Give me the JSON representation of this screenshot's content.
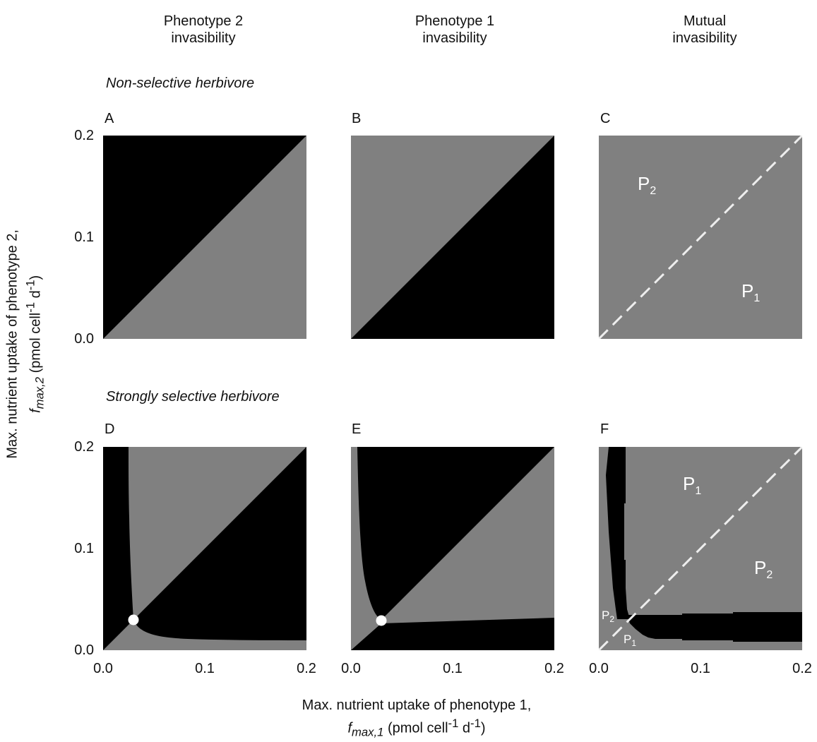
{
  "columns": [
    {
      "line1": "Phenotype 2",
      "line2": "invasibility"
    },
    {
      "line1": "Phenotype 1",
      "line2": "invasibility"
    },
    {
      "line1": "Mutual",
      "line2": "invasibility"
    }
  ],
  "rows": [
    "Non-selective herbivore",
    "Strongly selective herbivore"
  ],
  "panels": [
    "A",
    "B",
    "C",
    "D",
    "E",
    "F"
  ],
  "axes": {
    "x_ticks": [
      "0.0",
      "0.1",
      "0.2"
    ],
    "y_ticks": [
      "0.0",
      "0.1",
      "0.2"
    ],
    "xlabel": {
      "line1": "Max. nutrient uptake of phenotype 1,",
      "symbol": "f",
      "sub": "max,1",
      "unit_pre": "(pmol cell",
      "exp1": "-1",
      "mid": " d",
      "exp2": "-1",
      "unit_post": ")"
    },
    "ylabel": {
      "line1": "Max. nutrient uptake of phenotype 2,",
      "symbol": "f",
      "sub": "max,2",
      "unit_pre": "(pmol cell",
      "exp1": "-1",
      "mid": " d",
      "exp2": "-1",
      "unit_post": ")"
    }
  },
  "region_labels": {
    "C_upper": {
      "p": "P",
      "n": "2"
    },
    "C_lower": {
      "p": "P",
      "n": "1"
    },
    "F_upper": {
      "p": "P",
      "n": "1"
    },
    "F_lower": {
      "p": "P",
      "n": "2"
    },
    "F_small_upper": {
      "p": "P",
      "n": "2"
    },
    "F_small_lower": {
      "p": "P",
      "n": "1"
    }
  },
  "colors": {
    "invadable": "#000000",
    "non_invadable": "#808080",
    "marker": "#ffffff",
    "diagonal_dash": "#eeeeee"
  },
  "chart_data": [
    {
      "panel": "A",
      "type": "heatmap",
      "xlim": [
        0,
        0.2
      ],
      "ylim": [
        0,
        0.2
      ],
      "regions": [
        {
          "where": "y > x",
          "color": "black"
        },
        {
          "where": "y < x",
          "color": "gray"
        }
      ]
    },
    {
      "panel": "B",
      "type": "heatmap",
      "xlim": [
        0,
        0.2
      ],
      "ylim": [
        0,
        0.2
      ],
      "regions": [
        {
          "where": "y > x",
          "color": "gray"
        },
        {
          "where": "y < x",
          "color": "black"
        }
      ]
    },
    {
      "panel": "C",
      "type": "heatmap",
      "xlim": [
        0,
        0.2
      ],
      "ylim": [
        0,
        0.2
      ],
      "regions": [
        {
          "where": "all",
          "color": "gray"
        }
      ],
      "diagonal": "dashed"
    },
    {
      "panel": "D",
      "type": "heatmap",
      "xlim": [
        0,
        0.2
      ],
      "ylim": [
        0,
        0.2
      ],
      "singular_point": [
        0.03,
        0.03
      ],
      "boundary_vertical": [
        [
          0.025,
          0.2
        ],
        [
          0.025,
          0.15
        ],
        [
          0.026,
          0.1
        ],
        [
          0.027,
          0.07
        ],
        [
          0.028,
          0.05
        ],
        [
          0.03,
          0.03
        ]
      ],
      "boundary_horizontal": [
        [
          0.03,
          0.03
        ],
        [
          0.035,
          0.021
        ],
        [
          0.045,
          0.015
        ],
        [
          0.06,
          0.012
        ],
        [
          0.1,
          0.011
        ],
        [
          0.2,
          0.01
        ]
      ]
    },
    {
      "panel": "E",
      "type": "heatmap",
      "xlim": [
        0,
        0.2
      ],
      "ylim": [
        0,
        0.2
      ],
      "singular_point": [
        0.03,
        0.03
      ],
      "boundary_curve": [
        [
          0.0065,
          0.2
        ],
        [
          0.007,
          0.15
        ],
        [
          0.008,
          0.1
        ],
        [
          0.01,
          0.07
        ],
        [
          0.014,
          0.05
        ],
        [
          0.02,
          0.038
        ],
        [
          0.025,
          0.033
        ],
        [
          0.03,
          0.03
        ]
      ],
      "boundary_flat": [
        [
          0.03,
          0.027
        ],
        [
          0.1,
          0.029
        ],
        [
          0.2,
          0.032
        ]
      ]
    },
    {
      "panel": "F",
      "type": "heatmap",
      "xlim": [
        0,
        0.2
      ],
      "ylim": [
        0,
        0.2
      ],
      "diagonal": "dashed",
      "black_band_vertical": [
        [
          0.01,
          0.2
        ],
        [
          0.025,
          0.2
        ],
        [
          0.027,
          0.03
        ],
        [
          0.012,
          0.05
        ]
      ],
      "black_band_horizontal": [
        [
          0.03,
          0.027
        ],
        [
          0.2,
          0.03
        ],
        [
          0.2,
          0.009
        ],
        [
          0.05,
          0.012
        ]
      ]
    }
  ]
}
